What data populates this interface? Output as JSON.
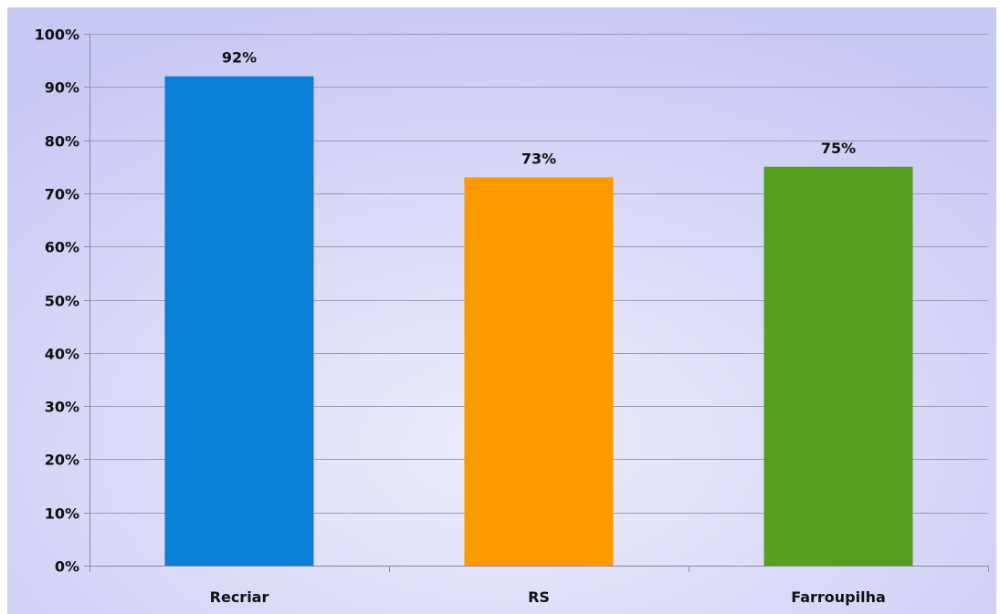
{
  "chart_data": {
    "type": "bar",
    "title": "",
    "xlabel": "",
    "ylabel": "",
    "categories": [
      "Recriar",
      "RS",
      "Farroupilha"
    ],
    "values": [
      92,
      73,
      75
    ],
    "data_labels": [
      "92%",
      "73%",
      "75%"
    ],
    "colors": [
      "#0780d6",
      "#fc9a00",
      "#569e1e"
    ],
    "ylim": [
      0,
      100
    ],
    "yticks": [
      0,
      10,
      20,
      30,
      40,
      50,
      60,
      70,
      80,
      90,
      100
    ],
    "ytick_labels": [
      "0%",
      "10%",
      "20%",
      "30%",
      "40%",
      "50%",
      "60%",
      "70%",
      "80%",
      "90%",
      "100%"
    ],
    "grid": true,
    "legend": "none",
    "background": {
      "outer": "#c8c8f4",
      "center": "#ececfc",
      "gridline": "#9b9bb4",
      "axis": "#8a8aa0"
    }
  }
}
